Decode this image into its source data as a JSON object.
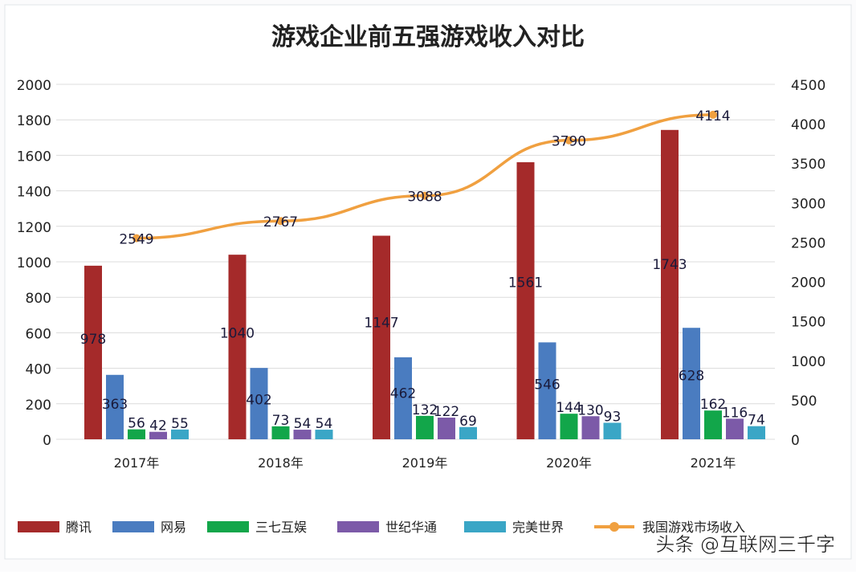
{
  "chart_data": {
    "type": "bar",
    "title": "游戏企业前五强游戏收入对比",
    "categories": [
      "2017年",
      "2018年",
      "2019年",
      "2020年",
      "2021年"
    ],
    "series": [
      {
        "name": "腾讯",
        "axis": "left",
        "color": "#a52a2a",
        "values": [
          978,
          1040,
          1147,
          1561,
          1743
        ]
      },
      {
        "name": "网易",
        "axis": "left",
        "color": "#4a7cc0",
        "values": [
          363,
          402,
          462,
          546,
          628
        ]
      },
      {
        "name": "三七互娱",
        "axis": "left",
        "color": "#12a64a",
        "values": [
          56,
          73,
          132,
          144,
          162
        ]
      },
      {
        "name": "世纪华通",
        "axis": "left",
        "color": "#7c5aa8",
        "values": [
          42,
          54,
          122,
          130,
          116
        ]
      },
      {
        "name": "完美世界",
        "axis": "left",
        "color": "#3aa6c6",
        "values": [
          55,
          54,
          69,
          93,
          74
        ]
      },
      {
        "name": "我国游戏市场收入",
        "axis": "right",
        "type": "line",
        "color": "#f0a040",
        "values": [
          2549,
          2767,
          3088,
          3790,
          4114
        ]
      }
    ],
    "ylim_left": [
      0,
      2000
    ],
    "ylim_right": [
      0,
      4500
    ],
    "yticks_left": [
      "0",
      "200",
      "400",
      "600",
      "800",
      "1000",
      "1200",
      "1400",
      "1600",
      "1800",
      "2000"
    ],
    "yticks_right": [
      "0",
      "500",
      "1000",
      "1500",
      "2000",
      "2500",
      "3000",
      "3500",
      "4000",
      "4500"
    ],
    "grid": true,
    "legend": "bottom"
  },
  "watermark": "头条 @互联网三千字"
}
